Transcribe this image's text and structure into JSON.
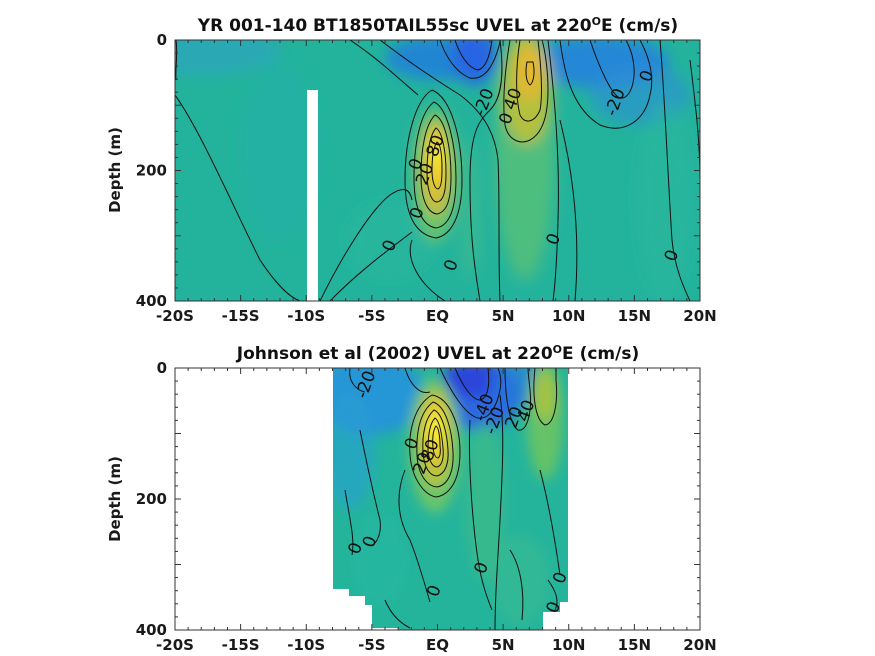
{
  "chart_data": [
    {
      "type": "heatmap",
      "title_prefix": "YR 001-140 BT1850TAIL55sc UVEL at 220",
      "title_sup": "O",
      "title_suffix": "E (cm/s)",
      "xlabel": "",
      "ylabel": "Depth (m)",
      "x_ticks": [
        "-20S",
        "-15S",
        "-10S",
        "-5S",
        "EQ",
        "5N",
        "10N",
        "15N",
        "20N"
      ],
      "y_ticks": [
        "0",
        "200",
        "400"
      ],
      "xlim": [
        -20,
        20
      ],
      "ylim": [
        400,
        0
      ],
      "features": [
        {
          "name": "equatorial undercurrent",
          "lat": -0.3,
          "depth": 175,
          "value": 80
        },
        {
          "name": "north equatorial countercurrent",
          "lat": 7,
          "depth": 55,
          "value": 45
        },
        {
          "name": "north equatorial current",
          "lat": 3,
          "depth": 30,
          "value": -40
        },
        {
          "name": "westward flow",
          "lat": 11,
          "depth": 40,
          "value": -35
        },
        {
          "name": "westward flow",
          "lat": -6,
          "depth": 50,
          "value": -20
        }
      ],
      "contour_labels": [
        {
          "text": "80",
          "lat": -0.2,
          "depth": 162
        },
        {
          "text": "20",
          "lat": -1.0,
          "depth": 205
        },
        {
          "text": "0",
          "lat": -1.7,
          "depth": 190
        },
        {
          "text": "0",
          "lat": -1.6,
          "depth": 265
        },
        {
          "text": "-20",
          "lat": 3.5,
          "depth": 95
        },
        {
          "text": "40",
          "lat": 5.7,
          "depth": 90
        },
        {
          "text": "0",
          "lat": 5.2,
          "depth": 120
        },
        {
          "text": "-20",
          "lat": 13.5,
          "depth": 95
        },
        {
          "text": "0",
          "lat": 15.9,
          "depth": 55
        },
        {
          "text": "0",
          "lat": -3.7,
          "depth": 315
        },
        {
          "text": "0",
          "lat": 1.0,
          "depth": 345
        },
        {
          "text": "0",
          "lat": 8.8,
          "depth": 305
        },
        {
          "text": "0",
          "lat": 17.8,
          "depth": 330
        }
      ],
      "masked_lat_range": [
        -10.1,
        -9.3
      ],
      "masked_depth_from": 80
    },
    {
      "type": "heatmap",
      "title_prefix": "Johnson et al (2002) UVEL at 220",
      "title_sup": "O",
      "title_suffix": "E (cm/s)",
      "xlabel": "",
      "ylabel": "Depth (m)",
      "x_ticks": [
        "-20S",
        "-15S",
        "-10S",
        "-5S",
        "EQ",
        "5N",
        "10N",
        "15N",
        "20N"
      ],
      "y_ticks": [
        "0",
        "200",
        "400"
      ],
      "xlim": [
        -20,
        20
      ],
      "ylim": [
        400,
        0
      ],
      "data_lat_range": [
        -8,
        10
      ],
      "features": [
        {
          "name": "equatorial undercurrent",
          "lat": -0.2,
          "depth": 110,
          "value": 95
        },
        {
          "name": "north equatorial countercurrent",
          "lat": 7.5,
          "depth": 30,
          "value": 45
        },
        {
          "name": "north equatorial current",
          "lat": 2.8,
          "depth": 35,
          "value": -45
        },
        {
          "name": "south equatorial current",
          "lat": -4.5,
          "depth": 40,
          "value": -25
        }
      ],
      "contour_labels": [
        {
          "text": "-20",
          "lat": -5.5,
          "depth": 25
        },
        {
          "text": "-40",
          "lat": 3.5,
          "depth": 60
        },
        {
          "text": "-20",
          "lat": 4.3,
          "depth": 80
        },
        {
          "text": "20",
          "lat": 5.8,
          "depth": 75
        },
        {
          "text": "40",
          "lat": 6.7,
          "depth": 65
        },
        {
          "text": "0",
          "lat": -2.0,
          "depth": 115
        },
        {
          "text": "80",
          "lat": -0.6,
          "depth": 125
        },
        {
          "text": "20",
          "lat": -1.2,
          "depth": 145
        },
        {
          "text": "0",
          "lat": -6.3,
          "depth": 275
        },
        {
          "text": "0",
          "lat": -5.2,
          "depth": 265
        },
        {
          "text": "0",
          "lat": 3.3,
          "depth": 305
        },
        {
          "text": "0",
          "lat": -0.3,
          "depth": 340
        },
        {
          "text": "0",
          "lat": 9.3,
          "depth": 320
        },
        {
          "text": "0",
          "lat": 8.8,
          "depth": 365
        }
      ]
    }
  ]
}
